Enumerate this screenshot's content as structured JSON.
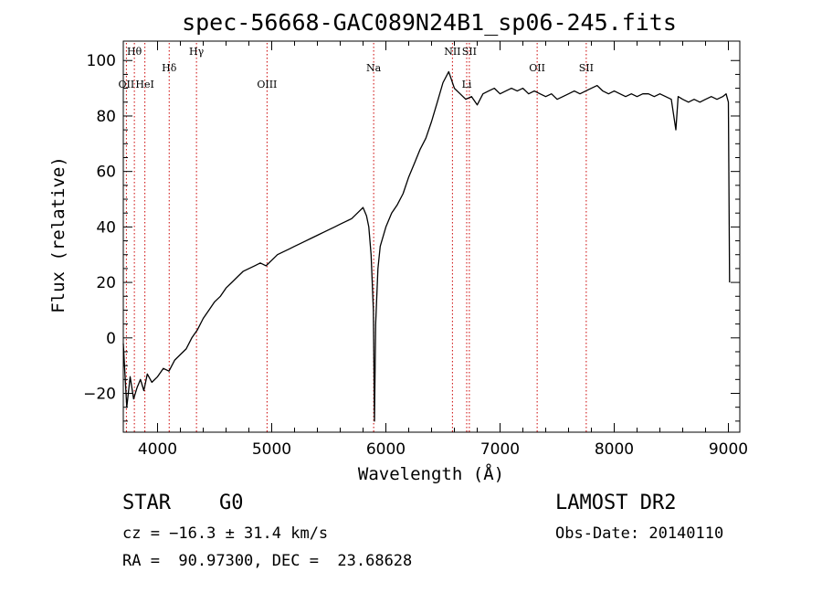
{
  "chart_data": {
    "type": "line",
    "title": "spec-56668-GAC089N24B1_sp06-245.fits",
    "xlabel": "Wavelength (Å)",
    "ylabel": "Flux (relative)",
    "xlim": [
      3700,
      9100
    ],
    "ylim": [
      -34,
      107
    ],
    "x_ticks": [
      4000,
      5000,
      6000,
      7000,
      8000,
      9000
    ],
    "y_ticks": [
      -20,
      0,
      20,
      40,
      60,
      80,
      100
    ],
    "grid": false,
    "series": [
      {
        "color": "#000000",
        "x": [
          3700,
          3730,
          3760,
          3790,
          3820,
          3850,
          3880,
          3910,
          3950,
          4000,
          4050,
          4100,
          4150,
          4200,
          4250,
          4300,
          4350,
          4400,
          4450,
          4500,
          4550,
          4600,
          4650,
          4700,
          4750,
          4800,
          4850,
          4900,
          4950,
          5000,
          5050,
          5100,
          5150,
          5200,
          5250,
          5300,
          5350,
          5400,
          5450,
          5500,
          5550,
          5600,
          5650,
          5700,
          5750,
          5800,
          5830,
          5850,
          5870,
          5890,
          5900,
          5910,
          5930,
          5950,
          6000,
          6050,
          6100,
          6150,
          6200,
          6250,
          6300,
          6350,
          6400,
          6450,
          6500,
          6550,
          6600,
          6650,
          6700,
          6750,
          6800,
          6850,
          6900,
          6950,
          7000,
          7050,
          7100,
          7150,
          7200,
          7250,
          7300,
          7350,
          7400,
          7450,
          7500,
          7550,
          7600,
          7650,
          7700,
          7750,
          7800,
          7850,
          7900,
          7950,
          8000,
          8050,
          8100,
          8150,
          8200,
          8250,
          8300,
          8350,
          8400,
          8450,
          8500,
          8540,
          8560,
          8600,
          8650,
          8700,
          8750,
          8800,
          8850,
          8900,
          8950,
          8980,
          9000,
          9010
        ],
        "y": [
          -2,
          -25,
          -14,
          -22,
          -18,
          -15,
          -19,
          -13,
          -16,
          -14,
          -11,
          -12,
          -8,
          -6,
          -4,
          0,
          3,
          7,
          10,
          13,
          15,
          18,
          20,
          22,
          24,
          25,
          26,
          27,
          26,
          28,
          30,
          31,
          32,
          33,
          34,
          35,
          36,
          37,
          38,
          39,
          40,
          41,
          42,
          43,
          45,
          47,
          44,
          40,
          30,
          10,
          -30,
          5,
          25,
          33,
          40,
          45,
          48,
          52,
          58,
          63,
          68,
          72,
          78,
          85,
          92,
          96,
          90,
          88,
          86,
          87,
          84,
          88,
          89,
          90,
          88,
          89,
          90,
          89,
          90,
          88,
          89,
          88,
          87,
          88,
          86,
          87,
          88,
          89,
          88,
          89,
          90,
          91,
          89,
          88,
          89,
          88,
          87,
          88,
          87,
          88,
          88,
          87,
          88,
          87,
          86,
          75,
          87,
          86,
          85,
          86,
          85,
          86,
          87,
          86,
          87,
          88,
          85,
          20
        ]
      }
    ],
    "annotations": [
      {
        "label": "OII",
        "x": 3727,
        "row": 2
      },
      {
        "label": "Hθ",
        "x": 3797,
        "row": 0
      },
      {
        "label": "HeI",
        "x": 3889,
        "row": 2
      },
      {
        "label": "Hδ",
        "x": 4102,
        "row": 1
      },
      {
        "label": "Hγ",
        "x": 4341,
        "row": 0
      },
      {
        "label": "OIII",
        "x": 4959,
        "row": 2
      },
      {
        "label": "Na",
        "x": 5893,
        "row": 1
      },
      {
        "label": "NII",
        "x": 6583,
        "row": 0
      },
      {
        "label": "Li",
        "x": 6708,
        "row": 2
      },
      {
        "label": "SII",
        "x": 6731,
        "row": 0
      },
      {
        "label": "OII",
        "x": 7325,
        "row": 1
      },
      {
        "label": "SII",
        "x": 7755,
        "row": 1
      }
    ],
    "annotation_color": "#cc0000"
  },
  "footer": {
    "object_class": "STAR",
    "subclass": "G0",
    "survey": "LAMOST DR2",
    "redshift": "cz = −16.3 ± 31.4 km/s",
    "obs_date": "Obs-Date: 20140110",
    "coords": "RA =  90.97300, DEC =  23.68628"
  }
}
